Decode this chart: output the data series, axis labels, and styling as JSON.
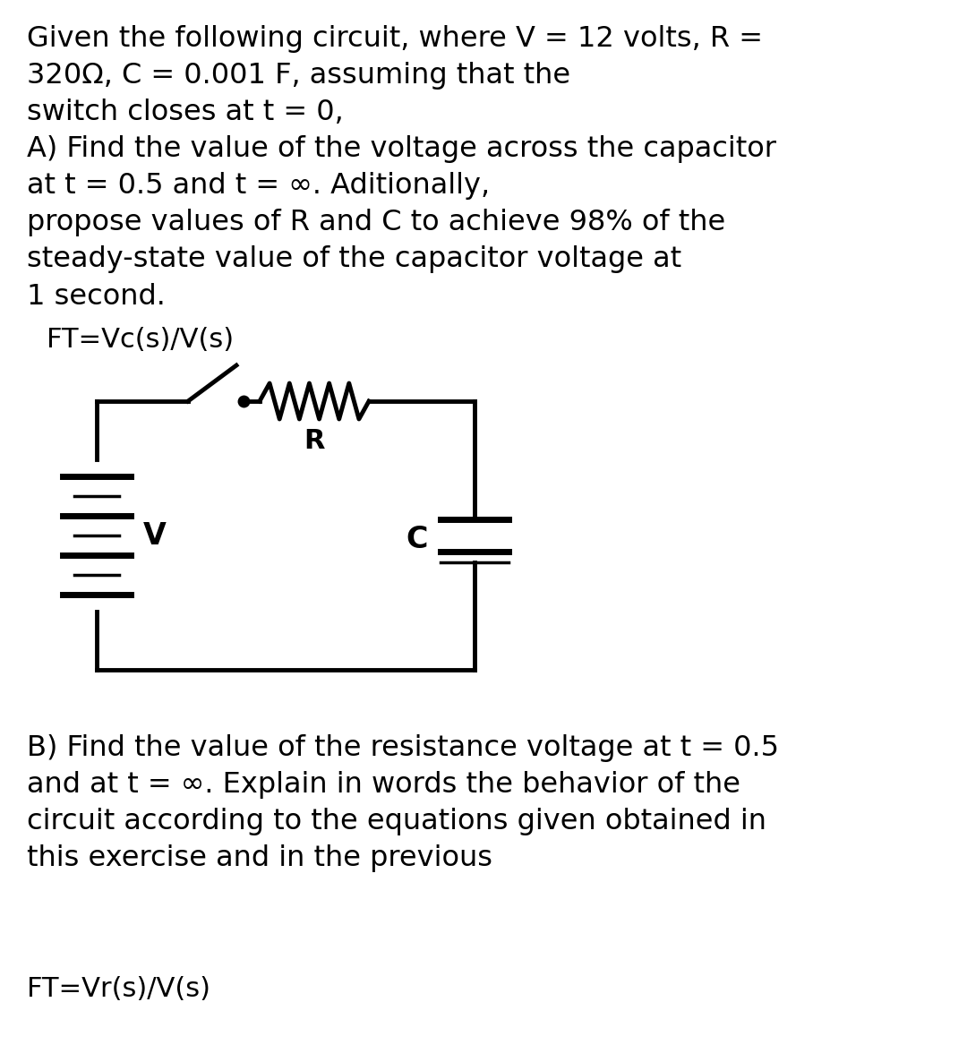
{
  "bg_color": "#ffffff",
  "text_color": "#000000",
  "fig_width": 10.8,
  "fig_height": 11.86,
  "top_text": "Given the following circuit, where V = 12 volts, R =\n320Ω, C = 0.001 F, assuming that the\nswitch closes at t = 0,\nA) Find the value of the voltage across the capacitor\nat t = 0.5 and t = ∞. Aditionally,\npropose values of R and C to achieve 98% of the\nsteady-state value of the capacitor voltage at\n1 second.",
  "ft_vc_text": "FT=Vc(s)/V(s)",
  "bottom_text": "B) Find the value of the resistance voltage at t = 0.5\nand at t = ∞. Explain in words the behavior of the\ncircuit according to the equations given obtained in\nthis exercise and in the previous",
  "ft_vr_text": "FT=Vr(s)/V(s)",
  "font_size_main": 23,
  "font_size_ft": 22
}
